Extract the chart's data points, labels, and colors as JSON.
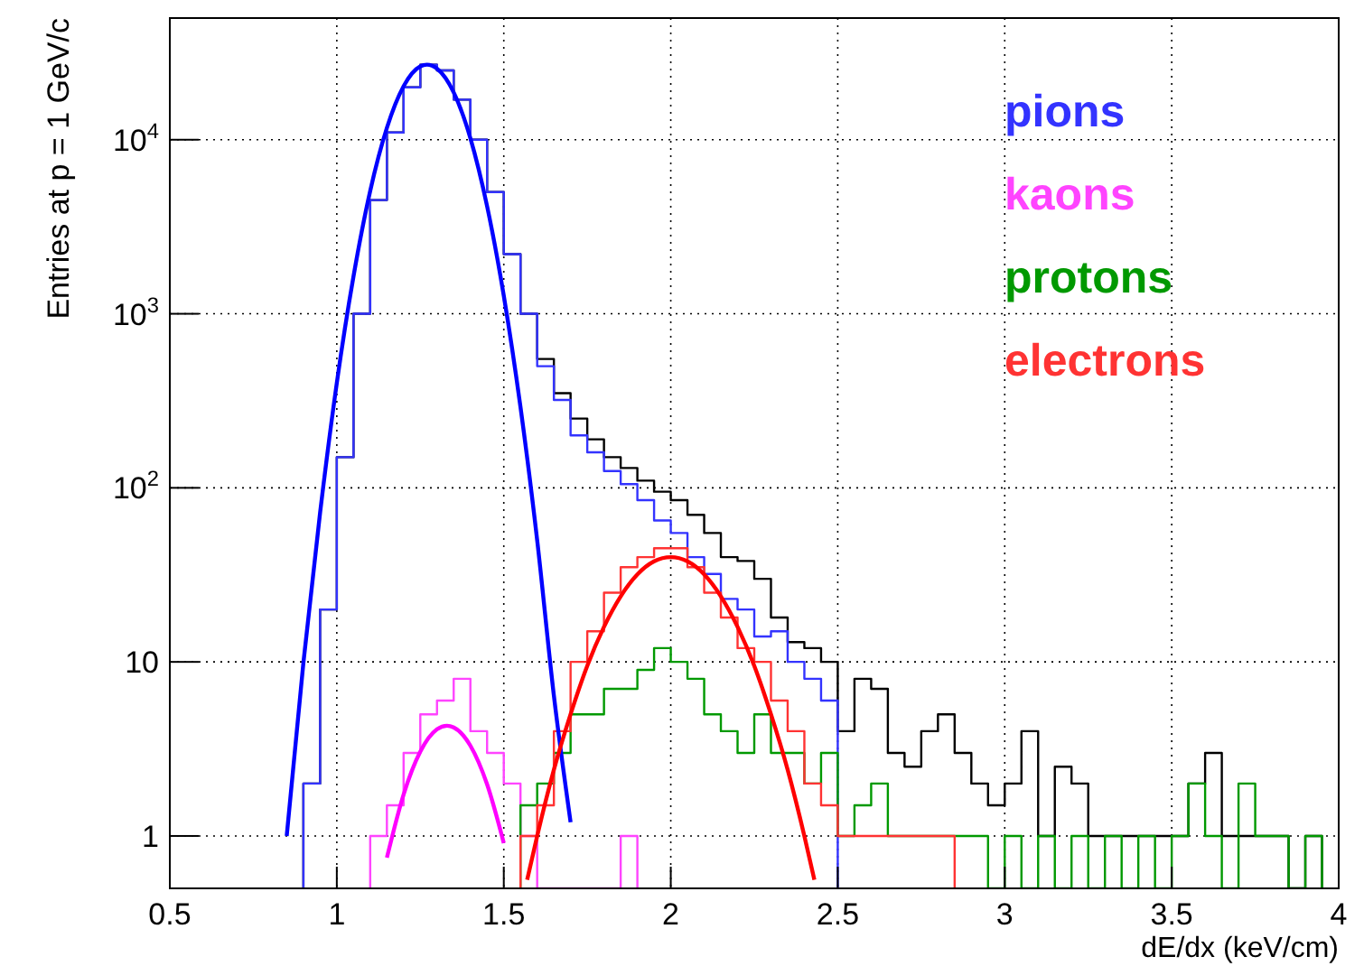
{
  "chart_data": {
    "type": "histogram",
    "xlabel": "dE/dx (keV/cm)",
    "ylabel": "Entries at p = 1 GeV/c",
    "series": [
      {
        "color": "#000000",
        "bins": [
          0.9,
          0.95,
          1.0,
          1.05,
          1.1,
          1.15,
          1.2,
          1.25,
          1.3,
          1.35,
          1.4,
          1.45,
          1.5,
          1.55,
          1.6,
          1.65,
          1.7,
          1.75,
          1.8,
          1.85,
          1.9,
          1.95,
          2.0,
          2.05,
          2.1,
          2.15,
          2.2,
          2.25,
          2.3,
          2.35,
          2.4,
          2.45,
          2.5,
          2.55,
          2.6,
          2.65,
          2.7,
          2.75,
          2.8,
          2.85,
          2.9,
          2.95,
          3.0,
          3.05,
          3.1,
          3.15,
          3.2,
          3.25,
          3.3,
          3.35,
          3.4,
          3.45,
          3.5,
          3.55,
          3.6,
          3.65,
          3.7,
          3.75,
          3.8,
          3.85,
          3.9,
          3.95
        ],
        "values": [
          2,
          20,
          150,
          1000,
          4500,
          11000,
          20000,
          27000,
          25000,
          17000,
          10000,
          5000,
          2200,
          1000,
          550,
          350,
          250,
          190,
          150,
          130,
          110,
          95,
          85,
          70,
          55,
          40,
          38,
          30,
          18,
          13,
          12,
          10,
          4,
          8,
          7,
          3,
          2.5,
          4,
          5,
          3,
          2,
          1.5,
          2,
          4,
          1,
          2.5,
          2,
          1,
          1,
          1,
          1,
          1,
          1,
          2,
          3,
          1,
          1,
          1,
          1,
          null,
          1
        ]
      },
      {
        "name": "pions",
        "color": "#3333ff",
        "bins": [
          0.9,
          0.95,
          1.0,
          1.05,
          1.1,
          1.15,
          1.2,
          1.25,
          1.3,
          1.35,
          1.4,
          1.45,
          1.5,
          1.55,
          1.6,
          1.65,
          1.7,
          1.75,
          1.8,
          1.85,
          1.9,
          1.95,
          2.0,
          2.05,
          2.1,
          2.15,
          2.2,
          2.25,
          2.3,
          2.35,
          2.4,
          2.45,
          2.5
        ],
        "values": [
          2,
          20,
          150,
          1000,
          4500,
          11000,
          20000,
          27000,
          25000,
          17000,
          10000,
          5000,
          2200,
          1000,
          500,
          320,
          200,
          160,
          125,
          105,
          85,
          65,
          55,
          40,
          32,
          23,
          20,
          14,
          15,
          10,
          8,
          6
        ]
      },
      {
        "name": "kaons",
        "color": "#ff44ff",
        "bins": [
          1.1,
          1.15,
          1.2,
          1.25,
          1.3,
          1.35,
          1.4,
          1.45,
          1.5,
          1.55,
          1.6,
          1.65,
          1.7,
          1.75,
          1.8,
          1.85,
          1.9
        ],
        "values": [
          1,
          1.5,
          3,
          5,
          6,
          8,
          4,
          3,
          2,
          1,
          null,
          null,
          null,
          null,
          null,
          1
        ]
      },
      {
        "name": "protons",
        "color": "#009900",
        "bins": [
          1.55,
          1.6,
          1.65,
          1.7,
          1.75,
          1.8,
          1.85,
          1.9,
          1.95,
          2.0,
          2.05,
          2.1,
          2.15,
          2.2,
          2.25,
          2.3,
          2.35,
          2.4,
          2.45,
          2.5,
          2.55,
          2.6,
          2.65,
          2.7,
          2.75,
          2.8,
          2.85,
          2.9,
          2.95,
          3.0,
          3.05,
          3.1,
          3.15,
          3.2,
          3.25,
          3.3,
          3.35,
          3.4,
          3.45,
          3.5,
          3.55,
          3.6,
          3.65,
          3.7,
          3.75,
          3.8,
          3.85,
          3.9,
          3.95
        ],
        "values": [
          1.5,
          2,
          3,
          5,
          5,
          7,
          7,
          9,
          12,
          10,
          8,
          5,
          4,
          3,
          5,
          3,
          3,
          2,
          3,
          1,
          1.5,
          2,
          1,
          1,
          1,
          1,
          1,
          1,
          null,
          1,
          null,
          1,
          null,
          1,
          null,
          1,
          null,
          1,
          null,
          1,
          2,
          1,
          null,
          2,
          1,
          1,
          null,
          1
        ]
      },
      {
        "name": "electrons",
        "color": "#ff3333",
        "bins": [
          1.55,
          1.6,
          1.65,
          1.7,
          1.75,
          1.8,
          1.85,
          1.9,
          1.95,
          2.0,
          2.05,
          2.1,
          2.15,
          2.2,
          2.25,
          2.3,
          2.35,
          2.4,
          2.45,
          2.5,
          2.55,
          2.6,
          2.65,
          2.7,
          2.75,
          2.8,
          2.85
        ],
        "values": [
          1,
          1.5,
          4,
          10,
          15,
          25,
          35,
          40,
          45,
          45,
          35,
          25,
          18,
          12,
          10,
          6,
          4,
          2,
          1.5,
          1,
          1,
          1,
          1,
          1,
          1,
          1
        ]
      },
      {
        "type": "line",
        "color": "#0000ff",
        "x": [
          0.85,
          0.9,
          0.95,
          1.0,
          1.05,
          1.1,
          1.15,
          1.2,
          1.25,
          1.27,
          1.3,
          1.35,
          1.4,
          1.45,
          1.5,
          1.55,
          1.6,
          1.65,
          1.7
        ],
        "values": [
          1,
          9.9,
          72,
          400,
          1640,
          5080,
          11700,
          20300,
          26400,
          27000,
          25600,
          18700,
          10200,
          4150,
          1270,
          291,
          50,
          6.4,
          1.2
        ]
      },
      {
        "type": "line",
        "color": "#ff00ff",
        "x": [
          1.15,
          1.2,
          1.25,
          1.3,
          1.33,
          1.35,
          1.4,
          1.45,
          1.5
        ],
        "values": [
          0.75,
          1.73,
          3.05,
          4.1,
          4.3,
          4.2,
          3.3,
          1.98,
          0.91
        ]
      },
      {
        "type": "line",
        "color": "#ff0000",
        "x": [
          1.57,
          1.6,
          1.65,
          1.7,
          1.75,
          1.8,
          1.85,
          1.9,
          1.95,
          2.0,
          2.05,
          2.1,
          2.15,
          2.2,
          2.25,
          2.3,
          2.35,
          2.4,
          2.43
        ],
        "values": [
          0.56,
          1,
          2.4,
          5,
          9.5,
          15.9,
          23.8,
          31.8,
          37.8,
          40,
          37.8,
          31.8,
          23.8,
          15.9,
          9.5,
          5,
          2.4,
          1,
          0.56
        ]
      }
    ],
    "log": "y",
    "xlim": [
      0.5,
      4
    ],
    "ylim": [
      0.5,
      50000
    ],
    "xticks": [
      0.5,
      1,
      1.5,
      2,
      2.5,
      3,
      3.5,
      4
    ],
    "yticks": [
      1,
      10,
      {
        "value": 100,
        "label": "10$^{2}$"
      },
      {
        "value": 1000,
        "label": "10$^{3}$"
      },
      {
        "value": 10000,
        "label": "10$^{4}$"
      }
    ],
    "grid": true,
    "legend": "top right"
  }
}
